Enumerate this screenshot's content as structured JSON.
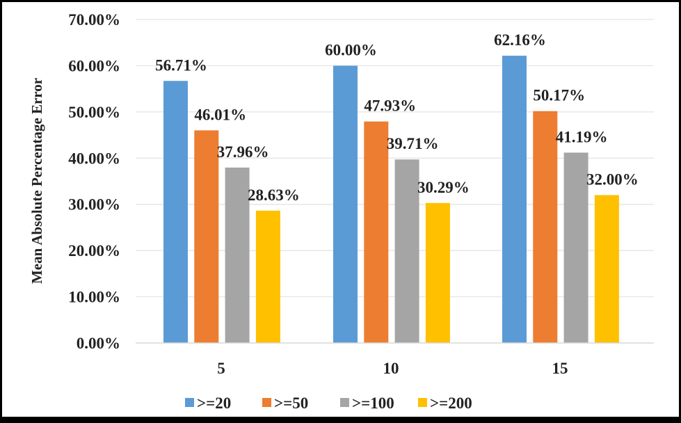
{
  "chart_data": {
    "type": "bar",
    "title": "",
    "xlabel": "",
    "ylabel": "Mean Absolute Percentage Error",
    "categories": [
      "5",
      "10",
      "15"
    ],
    "series": [
      {
        "name": ">=20",
        "color": "#5B9BD5",
        "values": [
          56.71,
          60.0,
          62.16
        ],
        "labels": [
          "56.71%",
          "60.00%",
          "62.16%"
        ]
      },
      {
        "name": ">=50",
        "color": "#ED7D31",
        "values": [
          46.01,
          47.93,
          50.17
        ],
        "labels": [
          "46.01%",
          "47.93%",
          "50.17%"
        ]
      },
      {
        "name": ">=100",
        "color": "#A5A5A5",
        "values": [
          37.96,
          39.71,
          41.19
        ],
        "labels": [
          "37.96%",
          "39.71%",
          "41.19%"
        ]
      },
      {
        "name": ">=200",
        "color": "#FFC000",
        "values": [
          28.63,
          30.29,
          32.0
        ],
        "labels": [
          "28.63%",
          "30.29%",
          "32.00%"
        ]
      }
    ],
    "ylim": [
      0,
      70
    ],
    "yticks": [
      "0.00%",
      "10.00%",
      "20.00%",
      "30.00%",
      "40.00%",
      "50.00%",
      "60.00%",
      "70.00%"
    ],
    "grid": true,
    "legend_position": "bottom"
  }
}
